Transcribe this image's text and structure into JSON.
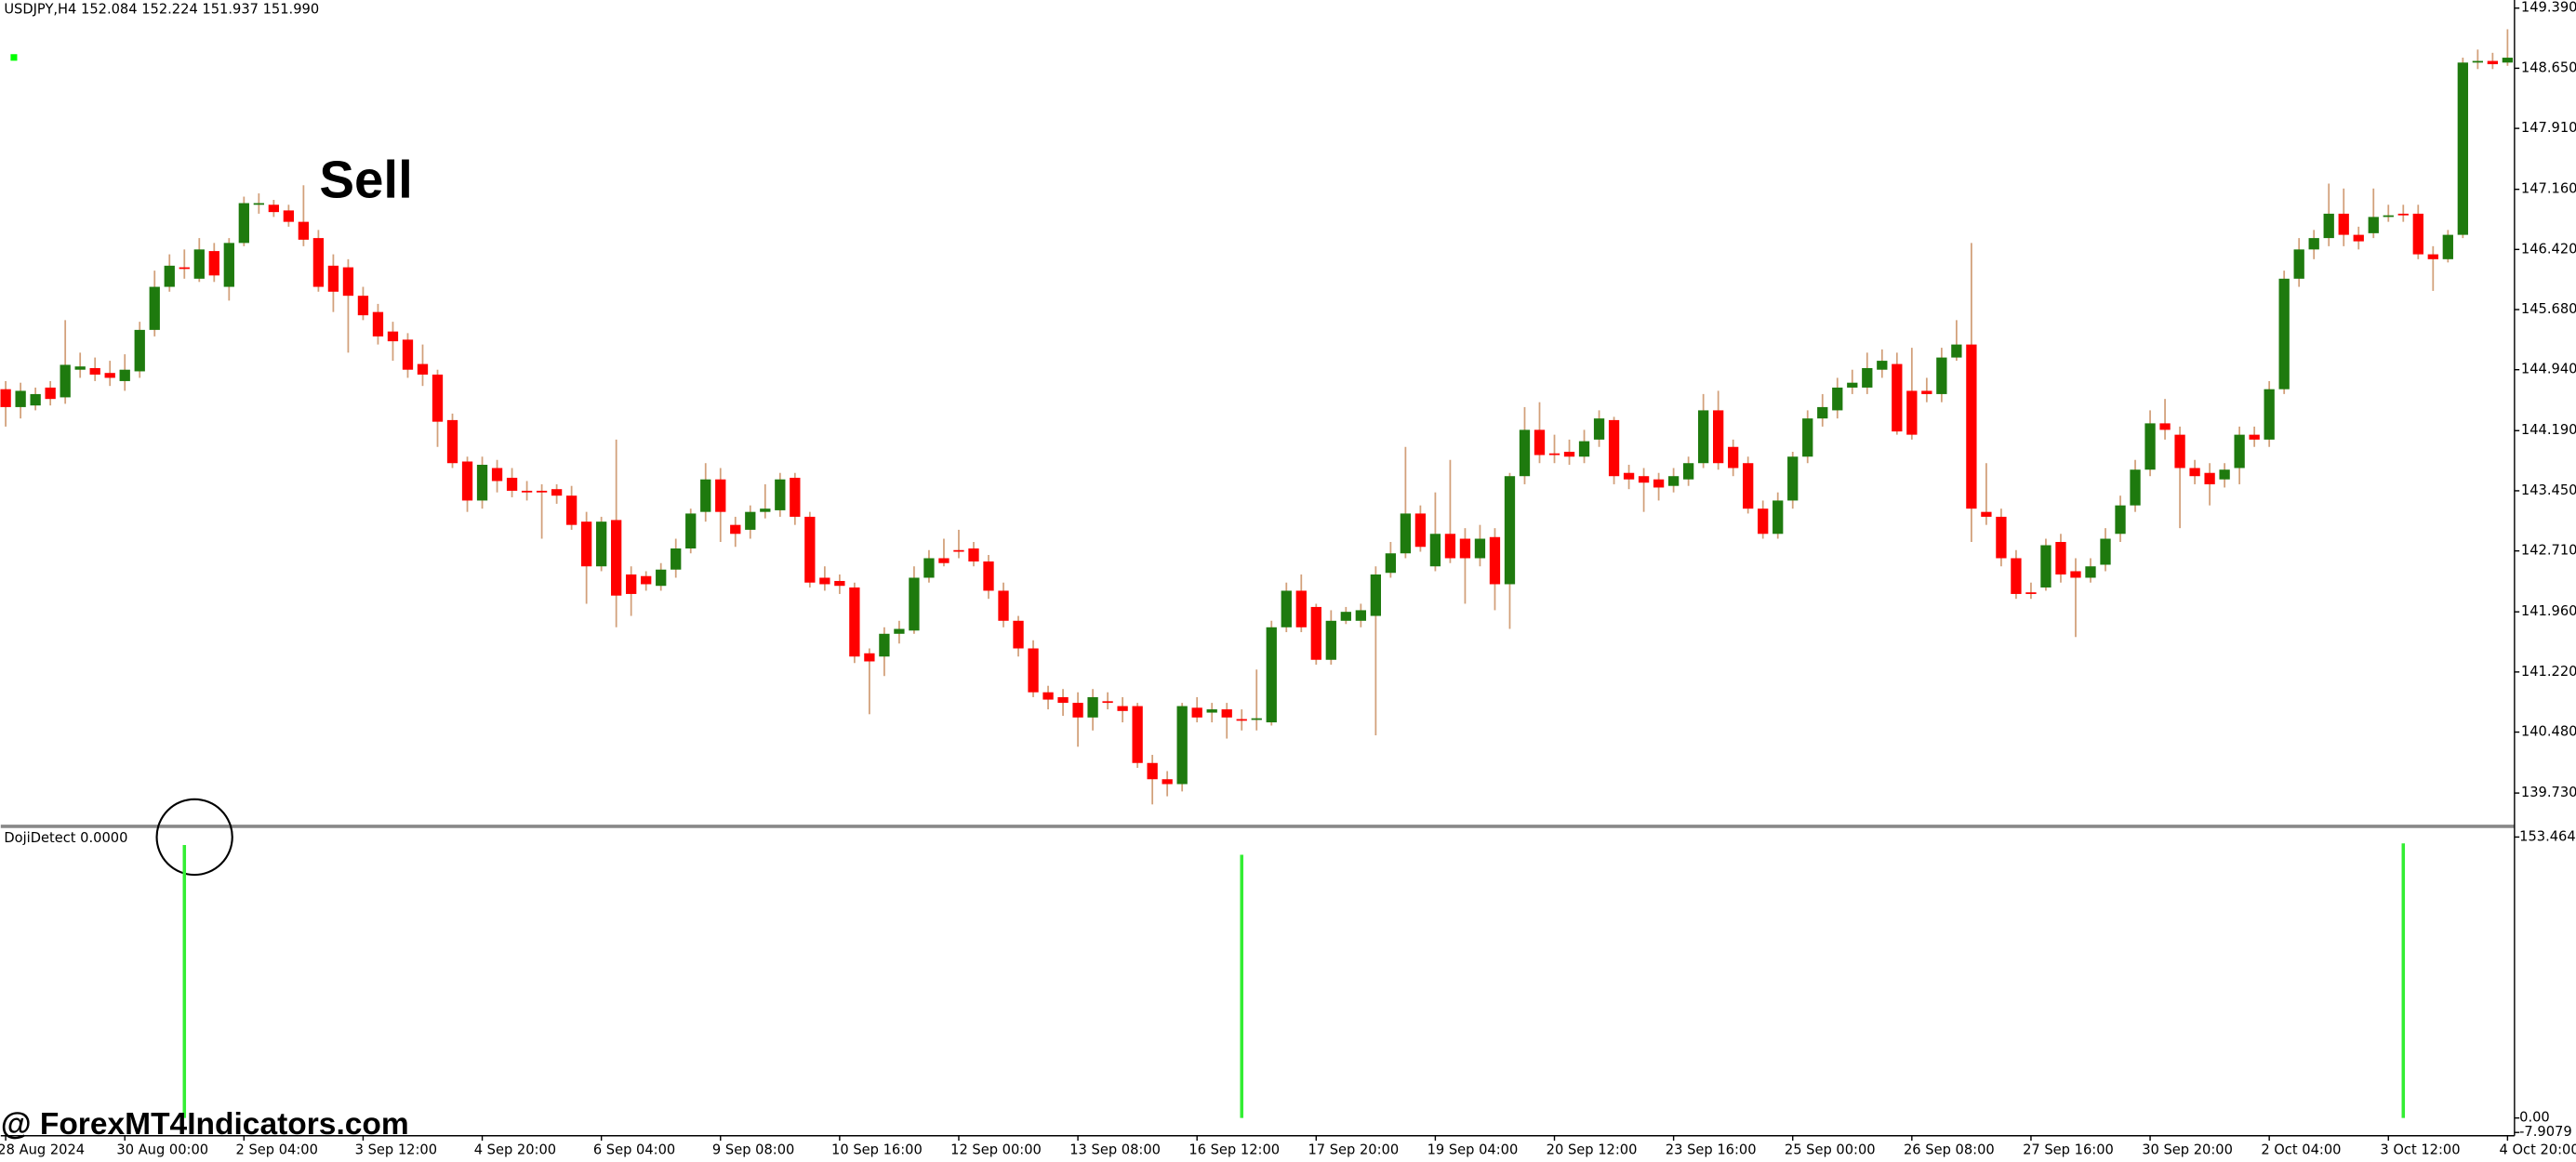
{
  "chart_data": {
    "type": "candlestick",
    "title": "USDJPY,H4 152.084 152.224 151.937 151.990",
    "annotation": "Sell",
    "watermark": "@ ForexMT4Indicators.com",
    "up_color": "#1e7a0e",
    "down_color": "#ff0000",
    "wick_color": "#d2a07a",
    "ylim": [
      139.33,
      149.49
    ],
    "yticks": [
      {
        "value": 149.39,
        "label": "149.390"
      },
      {
        "value": 148.65,
        "label": "148.650"
      },
      {
        "value": 147.91,
        "label": "147.910"
      },
      {
        "value": 147.16,
        "label": "147.160"
      },
      {
        "value": 146.42,
        "label": "146.420"
      },
      {
        "value": 145.68,
        "label": "145.680"
      },
      {
        "value": 144.94,
        "label": "144.940"
      },
      {
        "value": 144.19,
        "label": "144.190"
      },
      {
        "value": 143.45,
        "label": "143.450"
      },
      {
        "value": 142.71,
        "label": "142.710"
      },
      {
        "value": 141.96,
        "label": "141.960"
      },
      {
        "value": 141.22,
        "label": "141.220"
      },
      {
        "value": 140.48,
        "label": "140.480"
      },
      {
        "value": 139.73,
        "label": "139.730"
      }
    ],
    "categories": [
      "28 Aug 2024",
      null,
      null,
      null,
      null,
      null,
      null,
      null,
      "30 Aug 00:00",
      null,
      null,
      null,
      null,
      null,
      null,
      null,
      "2 Sep 04:00",
      null,
      null,
      null,
      null,
      null,
      null,
      null,
      "3 Sep 12:00",
      null,
      null,
      null,
      null,
      null,
      null,
      null,
      "4 Sep 20:00",
      null,
      null,
      null,
      null,
      null,
      null,
      null,
      "6 Sep 04:00",
      null,
      null,
      null,
      null,
      null,
      null,
      null,
      "9 Sep 08:00",
      null,
      null,
      null,
      null,
      null,
      null,
      null,
      "10 Sep 16:00",
      null,
      null,
      null,
      null,
      null,
      null,
      null,
      "12 Sep 00:00",
      null,
      null,
      null,
      null,
      null,
      null,
      null,
      "13 Sep 08:00",
      null,
      null,
      null,
      null,
      null,
      null,
      null,
      "16 Sep 12:00",
      null,
      null,
      null,
      null,
      null,
      null,
      null,
      "17 Sep 20:00",
      null,
      null,
      null,
      null,
      null,
      null,
      null,
      "19 Sep 04:00",
      null,
      null,
      null,
      null,
      null,
      null,
      null,
      "20 Sep 12:00",
      null,
      null,
      null,
      null,
      null,
      null,
      null,
      "23 Sep 16:00",
      null,
      null,
      null,
      null,
      null,
      null,
      null,
      "25 Sep 00:00",
      null,
      null,
      null,
      null,
      null,
      null,
      null,
      "26 Sep 08:00",
      null,
      null,
      null,
      null,
      null,
      null,
      null,
      "27 Sep 16:00",
      null,
      null,
      null,
      null,
      null,
      null,
      null,
      "30 Sep 20:00",
      null,
      null,
      null,
      null,
      null,
      null,
      null,
      "2 Oct 04:00",
      null,
      null,
      null,
      null,
      null,
      null,
      null,
      "3 Oct 12:00",
      null,
      null,
      null,
      null,
      null,
      null,
      null,
      "4 Oct 20:00"
    ],
    "open": [
      144.7,
      144.48,
      144.5,
      144.72,
      144.6,
      144.94,
      144.96,
      144.9,
      144.8,
      144.92,
      145.43,
      145.96,
      146.2,
      146.06,
      146.4,
      145.96,
      146.5,
      146.97,
      146.97,
      146.9,
      146.76,
      146.56,
      146.22,
      146.2,
      145.85,
      145.65,
      145.41,
      145.31,
      145.01,
      144.88,
      144.32,
      143.81,
      143.33,
      143.73,
      143.61,
      143.45,
      143.45,
      143.47,
      143.39,
      143.07,
      142.52,
      143.09,
      142.42,
      142.4,
      142.28,
      142.48,
      142.74,
      143.19,
      143.59,
      143.03,
      142.97,
      143.19,
      143.21,
      143.61,
      143.13,
      142.38,
      142.34,
      142.26,
      141.45,
      141.41,
      141.69,
      141.73,
      142.38,
      142.62,
      142.72,
      142.74,
      142.58,
      142.22,
      141.85,
      141.51,
      140.97,
      140.91,
      140.84,
      140.66,
      140.86,
      140.8,
      140.8,
      140.1,
      139.9,
      139.84,
      140.78,
      140.72,
      140.76,
      140.64,
      140.64,
      140.6,
      141.77,
      142.22,
      142.02,
      141.37,
      141.85,
      141.85,
      141.91,
      142.44,
      142.68,
      143.17,
      142.52,
      142.92,
      142.86,
      142.62,
      142.88,
      142.3,
      143.63,
      144.2,
      143.91,
      143.93,
      143.87,
      144.08,
      144.32,
      143.67,
      143.63,
      143.59,
      143.51,
      143.59,
      143.79,
      144.44,
      143.99,
      143.79,
      143.23,
      142.92,
      143.33,
      143.87,
      144.34,
      144.44,
      144.72,
      144.72,
      144.94,
      145.01,
      144.68,
      144.68,
      144.64,
      145.09,
      145.25,
      143.19,
      143.13,
      142.62,
      142.2,
      142.26,
      142.82,
      142.46,
      142.38,
      142.54,
      142.92,
      143.27,
      143.71,
      144.28,
      144.14,
      143.73,
      143.67,
      143.59,
      143.73,
      144.14,
      144.08,
      144.7,
      146.06,
      146.42,
      146.56,
      146.86,
      146.6,
      146.62,
      146.82,
      146.86,
      146.86,
      146.36,
      146.3,
      146.6,
      148.72,
      148.74,
      148.72
    ],
    "close": [
      144.48,
      144.68,
      144.64,
      144.58,
      145.0,
      144.98,
      144.88,
      144.84,
      144.94,
      145.43,
      145.96,
      146.22,
      146.19,
      146.42,
      146.1,
      146.5,
      146.99,
      146.99,
      146.88,
      146.76,
      146.54,
      145.96,
      145.9,
      145.85,
      145.61,
      145.35,
      145.29,
      144.94,
      144.88,
      144.3,
      143.79,
      143.33,
      143.77,
      143.57,
      143.45,
      143.43,
      143.43,
      143.39,
      143.03,
      142.52,
      143.07,
      142.16,
      142.18,
      142.3,
      142.48,
      142.74,
      143.17,
      143.59,
      143.19,
      142.92,
      143.19,
      143.23,
      143.59,
      143.13,
      142.32,
      142.3,
      142.28,
      141.41,
      141.35,
      141.69,
      141.75,
      142.38,
      142.62,
      142.56,
      142.7,
      142.58,
      142.22,
      141.85,
      141.51,
      140.97,
      140.88,
      140.84,
      140.66,
      140.91,
      140.84,
      140.74,
      140.1,
      139.9,
      139.84,
      140.8,
      140.66,
      140.76,
      140.66,
      140.63,
      140.65,
      141.77,
      142.22,
      141.77,
      141.37,
      141.85,
      141.96,
      141.98,
      142.42,
      142.68,
      143.17,
      142.76,
      142.92,
      142.62,
      142.62,
      142.86,
      142.3,
      143.63,
      144.2,
      143.89,
      143.89,
      143.87,
      144.06,
      144.34,
      143.63,
      143.59,
      143.55,
      143.49,
      143.63,
      143.79,
      144.44,
      143.79,
      143.73,
      143.23,
      142.92,
      143.33,
      143.87,
      144.34,
      144.48,
      144.72,
      144.78,
      144.96,
      145.05,
      144.18,
      144.14,
      144.64,
      145.09,
      145.25,
      143.23,
      143.13,
      142.62,
      142.18,
      142.18,
      142.78,
      142.42,
      142.38,
      142.52,
      142.86,
      143.27,
      143.71,
      144.28,
      144.2,
      143.73,
      143.63,
      143.53,
      143.71,
      144.14,
      144.08,
      144.7,
      146.06,
      146.42,
      146.56,
      146.86,
      146.6,
      146.52,
      146.82,
      146.84,
      146.84,
      146.36,
      146.3,
      146.6,
      148.72,
      148.74,
      148.7,
      148.78
    ],
    "high": [
      144.8,
      144.78,
      144.72,
      144.8,
      145.55,
      145.15,
      145.09,
      145.05,
      145.13,
      145.53,
      146.16,
      146.36,
      146.42,
      146.56,
      146.5,
      146.56,
      147.07,
      147.11,
      147.03,
      146.97,
      147.21,
      146.66,
      146.36,
      146.3,
      145.96,
      145.75,
      145.53,
      145.39,
      145.25,
      144.94,
      144.4,
      143.87,
      143.87,
      143.83,
      143.73,
      143.57,
      143.53,
      143.53,
      143.51,
      143.19,
      143.13,
      144.08,
      142.52,
      142.46,
      142.56,
      142.86,
      143.23,
      143.79,
      143.73,
      143.13,
      143.27,
      143.53,
      143.67,
      143.67,
      143.19,
      142.52,
      142.42,
      142.32,
      141.51,
      141.77,
      141.85,
      142.52,
      142.72,
      142.86,
      142.97,
      142.82,
      142.66,
      142.32,
      141.91,
      141.61,
      141.05,
      141.01,
      140.97,
      141.01,
      140.97,
      140.91,
      140.84,
      140.2,
      140.0,
      140.84,
      140.91,
      140.84,
      140.84,
      140.76,
      141.25,
      141.85,
      142.32,
      142.42,
      142.06,
      141.98,
      142.02,
      142.06,
      142.52,
      142.82,
      143.99,
      143.27,
      143.43,
      143.83,
      142.99,
      143.03,
      142.99,
      143.67,
      144.48,
      144.54,
      144.14,
      144.08,
      144.2,
      144.44,
      144.36,
      143.77,
      143.73,
      143.67,
      143.73,
      143.87,
      144.64,
      144.68,
      144.08,
      143.87,
      143.33,
      143.43,
      143.93,
      144.44,
      144.64,
      144.84,
      144.94,
      145.15,
      145.19,
      145.15,
      145.21,
      144.84,
      145.21,
      145.55,
      146.5,
      143.79,
      143.23,
      142.72,
      142.32,
      142.86,
      142.92,
      142.62,
      142.62,
      142.99,
      143.39,
      143.83,
      144.44,
      144.58,
      144.24,
      143.83,
      143.79,
      143.79,
      144.24,
      144.24,
      144.8,
      146.16,
      146.56,
      146.66,
      147.23,
      147.17,
      146.7,
      147.17,
      146.97,
      146.97,
      146.97,
      146.46,
      146.66,
      148.78,
      148.88,
      148.84,
      149.13
    ],
    "low": [
      144.24,
      144.34,
      144.44,
      144.5,
      144.52,
      144.84,
      144.8,
      144.74,
      144.68,
      144.84,
      145.35,
      145.9,
      146.06,
      146.02,
      146.02,
      145.79,
      146.46,
      146.86,
      146.82,
      146.7,
      146.46,
      145.9,
      145.65,
      145.15,
      145.55,
      145.25,
      145.05,
      144.84,
      144.74,
      143.99,
      143.73,
      143.19,
      143.23,
      143.43,
      143.37,
      143.33,
      142.86,
      143.29,
      142.97,
      142.06,
      142.46,
      141.77,
      141.91,
      142.22,
      142.22,
      142.38,
      142.68,
      143.07,
      142.82,
      142.76,
      142.86,
      143.11,
      143.13,
      143.03,
      142.26,
      142.22,
      142.18,
      141.33,
      140.7,
      141.17,
      141.57,
      141.69,
      142.32,
      142.52,
      142.62,
      142.52,
      142.12,
      141.77,
      141.41,
      140.91,
      140.76,
      140.68,
      140.3,
      140.5,
      140.76,
      140.6,
      140.04,
      139.59,
      139.69,
      139.75,
      140.6,
      140.6,
      140.4,
      140.5,
      140.5,
      140.56,
      141.71,
      141.71,
      141.31,
      141.31,
      141.81,
      141.77,
      140.44,
      142.38,
      142.62,
      142.7,
      142.46,
      142.56,
      142.06,
      142.52,
      141.98,
      141.75,
      143.53,
      143.79,
      143.79,
      143.77,
      143.79,
      143.99,
      143.53,
      143.47,
      143.19,
      143.33,
      143.43,
      143.51,
      143.73,
      143.71,
      143.63,
      143.17,
      142.86,
      142.86,
      143.23,
      143.79,
      144.24,
      144.34,
      144.64,
      144.64,
      144.84,
      144.14,
      144.08,
      144.54,
      144.54,
      145.05,
      142.82,
      143.03,
      142.52,
      142.12,
      142.12,
      142.22,
      142.32,
      141.65,
      142.32,
      142.46,
      142.82,
      143.19,
      143.63,
      144.08,
      142.99,
      143.53,
      143.27,
      143.49,
      143.53,
      143.99,
      143.99,
      144.64,
      145.96,
      146.3,
      146.46,
      146.46,
      146.42,
      146.56,
      146.76,
      146.76,
      146.3,
      145.91,
      146.26,
      146.56,
      148.64,
      148.64,
      148.68
    ],
    "indicator": {
      "label": "DojiDetect 0.0000",
      "color": "#33ee33",
      "ylim": [
        -7.9079,
        153.4649
      ],
      "yticks": [
        153.4649,
        {
          "value": 0,
          "label": "0.00"
        },
        -7.9079
      ],
      "values": [
        null,
        null,
        null,
        null,
        null,
        null,
        null,
        null,
        null,
        null,
        null,
        null,
        149.1,
        null,
        null,
        null,
        null,
        null,
        null,
        null,
        null,
        null,
        null,
        null,
        null,
        null,
        null,
        null,
        null,
        null,
        null,
        null,
        null,
        null,
        null,
        null,
        null,
        null,
        null,
        null,
        null,
        null,
        null,
        null,
        null,
        null,
        null,
        null,
        null,
        null,
        null,
        null,
        null,
        null,
        null,
        null,
        null,
        null,
        null,
        null,
        null,
        null,
        null,
        null,
        null,
        null,
        null,
        null,
        null,
        null,
        null,
        null,
        null,
        null,
        null,
        null,
        null,
        null,
        null,
        null,
        null,
        null,
        null,
        143.8,
        null,
        null,
        null,
        null,
        null,
        null,
        null,
        null,
        null,
        null,
        null,
        null,
        null,
        null,
        null,
        null,
        null,
        null,
        null,
        null,
        null,
        null,
        null,
        null,
        null,
        null,
        null,
        null,
        null,
        null,
        null,
        null,
        null,
        null,
        null,
        null,
        null,
        null,
        null,
        null,
        null,
        null,
        null,
        null,
        null,
        null,
        null,
        null,
        null,
        null,
        null,
        null,
        null,
        null,
        null,
        null,
        null,
        null,
        null,
        null,
        null,
        null,
        null,
        null,
        null,
        null,
        null,
        null,
        null,
        null,
        null,
        null,
        null,
        null,
        null,
        null,
        null,
        150.0,
        null,
        null,
        null,
        null,
        null,
        null,
        null
      ]
    }
  }
}
